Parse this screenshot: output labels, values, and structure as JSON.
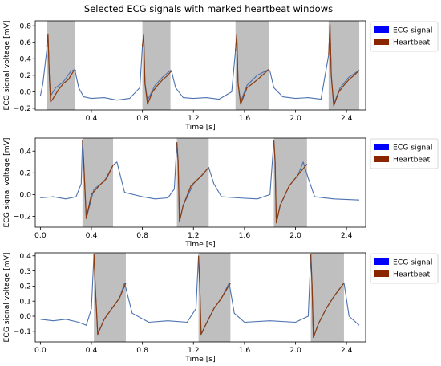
{
  "figure": {
    "title": "Selected ECG signals with marked heartbeat windows"
  },
  "chart_data": [
    {
      "type": "line",
      "xlabel": "Time [s]",
      "ylabel": "ECG signal voltage [mV]",
      "xlim": [
        -0.04,
        2.55
      ],
      "ylim": [
        -0.22,
        0.86
      ],
      "xticks": [
        0.4,
        0.8,
        1.2,
        1.6,
        2.0,
        2.4
      ],
      "xtick_labels": [
        "0.4",
        "0.8",
        "1.2",
        "1.6",
        "2.0",
        "2.4"
      ],
      "yticks": [
        -0.2,
        0.0,
        0.2,
        0.4,
        0.6,
        0.8
      ],
      "ytick_labels": [
        "−0.2",
        "0.0",
        "0.2",
        "0.4",
        "0.6",
        "0.8"
      ],
      "legend": {
        "position": "outside-right",
        "entries": [
          "ECG signal",
          "Heartbeat"
        ]
      },
      "series": [
        {
          "name": "ECG signal",
          "color": "#4c72b0",
          "x": [
            0.0,
            0.02,
            0.05,
            0.06,
            0.07,
            0.08,
            0.12,
            0.18,
            0.24,
            0.27,
            0.3,
            0.34,
            0.4,
            0.5,
            0.6,
            0.7,
            0.78,
            0.8,
            0.81,
            0.82,
            0.84,
            0.9,
            0.96,
            1.02,
            1.03,
            1.06,
            1.12,
            1.2,
            1.3,
            1.4,
            1.5,
            1.53,
            1.54,
            1.55,
            1.57,
            1.62,
            1.7,
            1.79,
            1.8,
            1.83,
            1.9,
            2.0,
            2.1,
            2.2,
            2.26,
            2.27,
            2.28,
            2.3,
            2.35,
            2.42,
            2.5
          ],
          "y": [
            -0.05,
            0.1,
            0.5,
            0.7,
            0.2,
            -0.05,
            0.05,
            0.12,
            0.25,
            0.27,
            0.05,
            -0.06,
            -0.08,
            -0.07,
            -0.1,
            -0.08,
            0.05,
            0.55,
            0.7,
            0.1,
            -0.1,
            0.08,
            0.18,
            0.26,
            0.24,
            0.05,
            -0.07,
            -0.08,
            -0.07,
            -0.09,
            0.0,
            0.5,
            0.7,
            0.1,
            -0.12,
            0.08,
            0.2,
            0.27,
            0.25,
            0.05,
            -0.06,
            -0.08,
            -0.07,
            -0.09,
            0.45,
            0.82,
            0.2,
            -0.15,
            0.05,
            0.18,
            0.26
          ]
        },
        {
          "name": "Heartbeat",
          "color": "#8b3a0e",
          "segments": [
            {
              "x": [
                0.05,
                0.06,
                0.07,
                0.08,
                0.1,
                0.14,
                0.18,
                0.22,
                0.26,
                0.28
              ],
              "y": [
                0.55,
                0.7,
                0.2,
                -0.12,
                -0.08,
                0.02,
                0.1,
                0.15,
                0.25,
                0.26
              ]
            },
            {
              "x": [
                0.8,
                0.81,
                0.82,
                0.84,
                0.88,
                0.92,
                0.96,
                1.0,
                1.03
              ],
              "y": [
                0.55,
                0.7,
                0.1,
                -0.15,
                0.0,
                0.08,
                0.15,
                0.2,
                0.26
              ]
            },
            {
              "x": [
                1.53,
                1.54,
                1.55,
                1.57,
                1.62,
                1.68,
                1.74,
                1.79
              ],
              "y": [
                0.5,
                0.7,
                0.1,
                -0.15,
                0.05,
                0.12,
                0.2,
                0.27
              ]
            },
            {
              "x": [
                2.26,
                2.27,
                2.28,
                2.3,
                2.34,
                2.38,
                2.42,
                2.46,
                2.5
              ],
              "y": [
                0.45,
                0.82,
                0.2,
                -0.17,
                0.0,
                0.08,
                0.15,
                0.2,
                0.26
              ]
            }
          ]
        }
      ],
      "windows": [
        [
          0.05,
          0.27
        ],
        [
          0.8,
          1.02
        ],
        [
          1.53,
          1.79
        ],
        [
          2.26,
          2.5
        ]
      ]
    },
    {
      "type": "line",
      "xlabel": "Time [s]",
      "ylabel": "ECG signal voltage [mV]",
      "xlim": [
        -0.04,
        2.55
      ],
      "ylim": [
        -0.3,
        0.52
      ],
      "xticks": [
        0.0,
        0.4,
        0.8,
        1.2,
        1.6,
        2.0,
        2.4
      ],
      "xtick_labels": [
        "0.0",
        "0.4",
        "0.8",
        "1.2",
        "1.6",
        "2.0",
        "2.4"
      ],
      "yticks": [
        -0.2,
        0.0,
        0.2,
        0.4
      ],
      "ytick_labels": [
        "−0.2",
        "0.0",
        "0.2",
        "0.4"
      ],
      "legend": {
        "position": "outside-right",
        "entries": [
          "ECG signal",
          "Heartbeat"
        ]
      },
      "series": [
        {
          "name": "ECG signal",
          "color": "#4c72b0",
          "x": [
            0.0,
            0.1,
            0.2,
            0.28,
            0.32,
            0.33,
            0.34,
            0.36,
            0.42,
            0.5,
            0.57,
            0.6,
            0.66,
            0.8,
            0.9,
            1.0,
            1.05,
            1.07,
            1.08,
            1.09,
            1.12,
            1.2,
            1.27,
            1.32,
            1.36,
            1.42,
            1.55,
            1.7,
            1.8,
            1.83,
            1.84,
            1.85,
            1.88,
            1.95,
            2.02,
            2.06,
            2.1,
            2.15,
            2.3,
            2.5
          ],
          "y": [
            -0.03,
            -0.02,
            -0.04,
            -0.02,
            0.1,
            0.5,
            0.3,
            -0.22,
            0.05,
            0.12,
            0.27,
            0.3,
            0.02,
            -0.02,
            -0.04,
            -0.03,
            0.05,
            0.48,
            0.3,
            -0.25,
            -0.1,
            0.1,
            0.18,
            0.25,
            0.1,
            -0.02,
            -0.03,
            -0.04,
            0.0,
            0.5,
            0.3,
            -0.26,
            -0.1,
            0.08,
            0.18,
            0.3,
            0.15,
            -0.02,
            -0.04,
            -0.05
          ]
        },
        {
          "name": "Heartbeat",
          "color": "#8b3a0e",
          "segments": [
            {
              "x": [
                0.33,
                0.34,
                0.36,
                0.4,
                0.46,
                0.52,
                0.57
              ],
              "y": [
                0.5,
                0.3,
                -0.22,
                0.0,
                0.08,
                0.15,
                0.27
              ]
            },
            {
              "x": [
                1.07,
                1.08,
                1.09,
                1.12,
                1.18,
                1.26,
                1.32
              ],
              "y": [
                0.48,
                0.3,
                -0.25,
                -0.1,
                0.08,
                0.17,
                0.25
              ]
            },
            {
              "x": [
                1.83,
                1.84,
                1.85,
                1.88,
                1.95,
                2.02,
                2.09
              ],
              "y": [
                0.5,
                0.3,
                -0.26,
                -0.1,
                0.08,
                0.18,
                0.28
              ]
            }
          ]
        }
      ],
      "windows": [
        [
          0.33,
          0.57
        ],
        [
          1.07,
          1.32
        ],
        [
          1.83,
          2.09
        ]
      ]
    },
    {
      "type": "line",
      "xlabel": "Time [s]",
      "ylabel": "ECG signal voltage [mV]",
      "xlim": [
        -0.04,
        2.55
      ],
      "ylim": [
        -0.17,
        0.42
      ],
      "xticks": [
        0.0,
        0.4,
        0.8,
        1.2,
        1.6,
        2.0,
        2.4
      ],
      "xtick_labels": [
        "0.0",
        "0.4",
        "0.8",
        "1.2",
        "1.6",
        "2.0",
        "2.4"
      ],
      "yticks": [
        -0.1,
        0.0,
        0.1,
        0.2,
        0.3,
        0.4
      ],
      "ytick_labels": [
        "−0.1",
        "0.0",
        "0.1",
        "0.2",
        "0.3",
        "0.4"
      ],
      "legend": {
        "position": "outside-right",
        "entries": [
          "ECG signal",
          "Heartbeat"
        ]
      },
      "series": [
        {
          "name": "ECG signal",
          "color": "#4c72b0",
          "x": [
            0.0,
            0.1,
            0.2,
            0.3,
            0.36,
            0.4,
            0.42,
            0.43,
            0.45,
            0.5,
            0.56,
            0.62,
            0.66,
            0.72,
            0.85,
            1.0,
            1.15,
            1.22,
            1.24,
            1.25,
            1.26,
            1.3,
            1.36,
            1.42,
            1.48,
            1.52,
            1.6,
            1.8,
            2.0,
            2.1,
            2.12,
            2.13,
            2.14,
            2.18,
            2.24,
            2.3,
            2.38,
            2.42,
            2.5
          ],
          "y": [
            -0.02,
            -0.03,
            -0.02,
            -0.04,
            -0.06,
            0.05,
            0.41,
            0.2,
            -0.12,
            -0.02,
            0.05,
            0.12,
            0.22,
            0.02,
            -0.04,
            -0.03,
            -0.04,
            0.05,
            0.4,
            0.2,
            -0.12,
            -0.05,
            0.05,
            0.12,
            0.22,
            0.02,
            -0.04,
            -0.03,
            -0.04,
            0.0,
            0.41,
            0.2,
            -0.14,
            -0.05,
            0.05,
            0.13,
            0.22,
            0.0,
            -0.06
          ]
        },
        {
          "name": "Heartbeat",
          "color": "#8b3a0e",
          "segments": [
            {
              "x": [
                0.42,
                0.43,
                0.45,
                0.5,
                0.56,
                0.62,
                0.67
              ],
              "y": [
                0.41,
                0.2,
                -0.12,
                -0.02,
                0.05,
                0.12,
                0.22
              ]
            },
            {
              "x": [
                1.24,
                1.25,
                1.26,
                1.3,
                1.36,
                1.42,
                1.49
              ],
              "y": [
                0.4,
                0.2,
                -0.12,
                -0.05,
                0.05,
                0.12,
                0.22
              ]
            },
            {
              "x": [
                2.12,
                2.13,
                2.14,
                2.18,
                2.24,
                2.3,
                2.38
              ],
              "y": [
                0.41,
                0.2,
                -0.14,
                -0.05,
                0.05,
                0.13,
                0.22
              ]
            }
          ]
        }
      ],
      "windows": [
        [
          0.42,
          0.67
        ],
        [
          1.24,
          1.49
        ],
        [
          2.12,
          2.38
        ]
      ]
    }
  ]
}
